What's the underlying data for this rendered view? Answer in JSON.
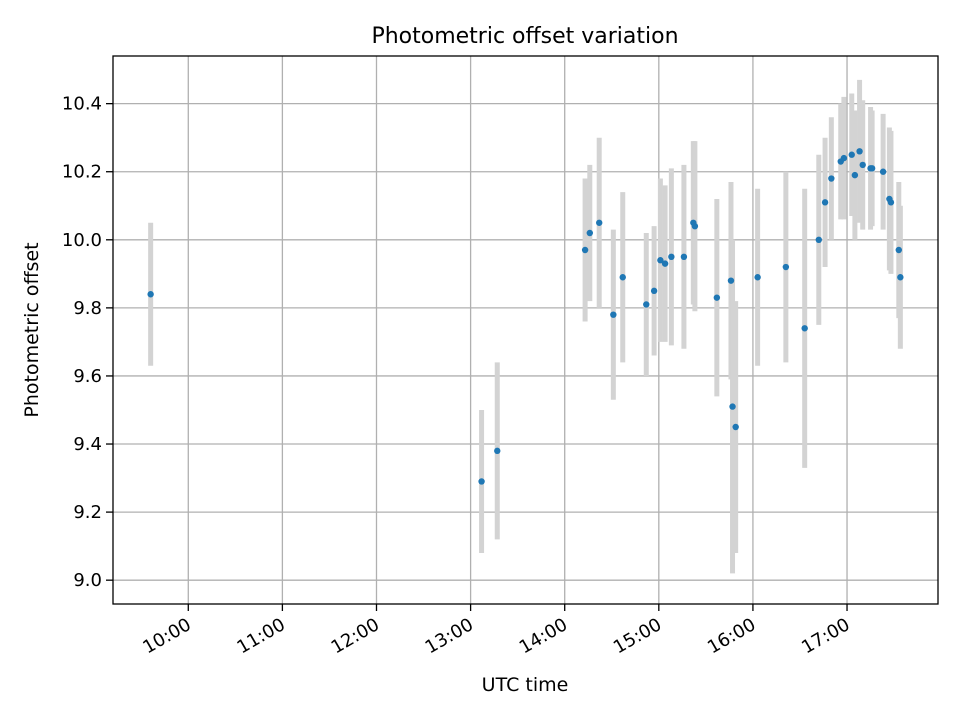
{
  "chart_data": {
    "type": "scatter",
    "title": "Photometric offset variation",
    "xlabel": "UTC time",
    "ylabel": "Photometric offset",
    "x_axis_kind": "time",
    "xlim": [
      "09:12",
      "17:58"
    ],
    "ylim": [
      8.93,
      10.54
    ],
    "grid": true,
    "x_ticks": [
      "10:00",
      "11:00",
      "12:00",
      "13:00",
      "14:00",
      "15:00",
      "16:00",
      "17:00"
    ],
    "y_ticks": [
      "9.0",
      "9.2",
      "9.4",
      "9.6",
      "9.8",
      "10.0",
      "10.2",
      "10.4"
    ],
    "series": [
      {
        "color": "#1f77b4",
        "errorbar_color": "#d3d3d3",
        "points": [
          {
            "time": "09:36",
            "y": 9.84,
            "err": 0.21
          },
          {
            "time": "13:07",
            "y": 9.29,
            "err": 0.21
          },
          {
            "time": "13:17",
            "y": 9.38,
            "err": 0.26
          },
          {
            "time": "14:13",
            "y": 9.97,
            "err": 0.21
          },
          {
            "time": "14:16",
            "y": 10.02,
            "err": 0.2
          },
          {
            "time": "14:22",
            "y": 10.05,
            "err": 0.25
          },
          {
            "time": "14:31",
            "y": 9.78,
            "err": 0.25
          },
          {
            "time": "14:37",
            "y": 9.89,
            "err": 0.25
          },
          {
            "time": "14:52",
            "y": 9.81,
            "err": 0.21
          },
          {
            "time": "14:57",
            "y": 9.85,
            "err": 0.19
          },
          {
            "time": "15:01",
            "y": 9.94,
            "err": 0.24
          },
          {
            "time": "15:04",
            "y": 9.93,
            "err": 0.23
          },
          {
            "time": "15:08",
            "y": 9.95,
            "err": 0.26
          },
          {
            "time": "15:16",
            "y": 9.95,
            "err": 0.27
          },
          {
            "time": "15:22",
            "y": 10.05,
            "err": 0.24
          },
          {
            "time": "15:23",
            "y": 10.04,
            "err": 0.25
          },
          {
            "time": "15:37",
            "y": 9.83,
            "err": 0.29
          },
          {
            "time": "15:46",
            "y": 9.88,
            "err": 0.29
          },
          {
            "time": "15:47",
            "y": 9.51,
            "err": 0.49
          },
          {
            "time": "15:49",
            "y": 9.45,
            "err": 0.37
          },
          {
            "time": "16:03",
            "y": 9.89,
            "err": 0.26
          },
          {
            "time": "16:21",
            "y": 9.92,
            "err": 0.28
          },
          {
            "time": "16:33",
            "y": 9.74,
            "err": 0.41
          },
          {
            "time": "16:42",
            "y": 10.0,
            "err": 0.25
          },
          {
            "time": "16:46",
            "y": 10.11,
            "err": 0.19
          },
          {
            "time": "16:50",
            "y": 10.18,
            "err": 0.18
          },
          {
            "time": "16:56",
            "y": 10.23,
            "err": 0.17
          },
          {
            "time": "16:58",
            "y": 10.24,
            "err": 0.18
          },
          {
            "time": "17:03",
            "y": 10.25,
            "err": 0.18
          },
          {
            "time": "17:05",
            "y": 10.19,
            "err": 0.19
          },
          {
            "time": "17:08",
            "y": 10.26,
            "err": 0.21
          },
          {
            "time": "17:10",
            "y": 10.22,
            "err": 0.19
          },
          {
            "time": "17:15",
            "y": 10.21,
            "err": 0.18
          },
          {
            "time": "17:16",
            "y": 10.21,
            "err": 0.17
          },
          {
            "time": "17:23",
            "y": 10.2,
            "err": 0.17
          },
          {
            "time": "17:27",
            "y": 10.12,
            "err": 0.21
          },
          {
            "time": "17:28",
            "y": 10.11,
            "err": 0.21
          },
          {
            "time": "17:33",
            "y": 9.97,
            "err": 0.2
          },
          {
            "time": "17:34",
            "y": 9.89,
            "err": 0.21
          }
        ]
      }
    ]
  }
}
